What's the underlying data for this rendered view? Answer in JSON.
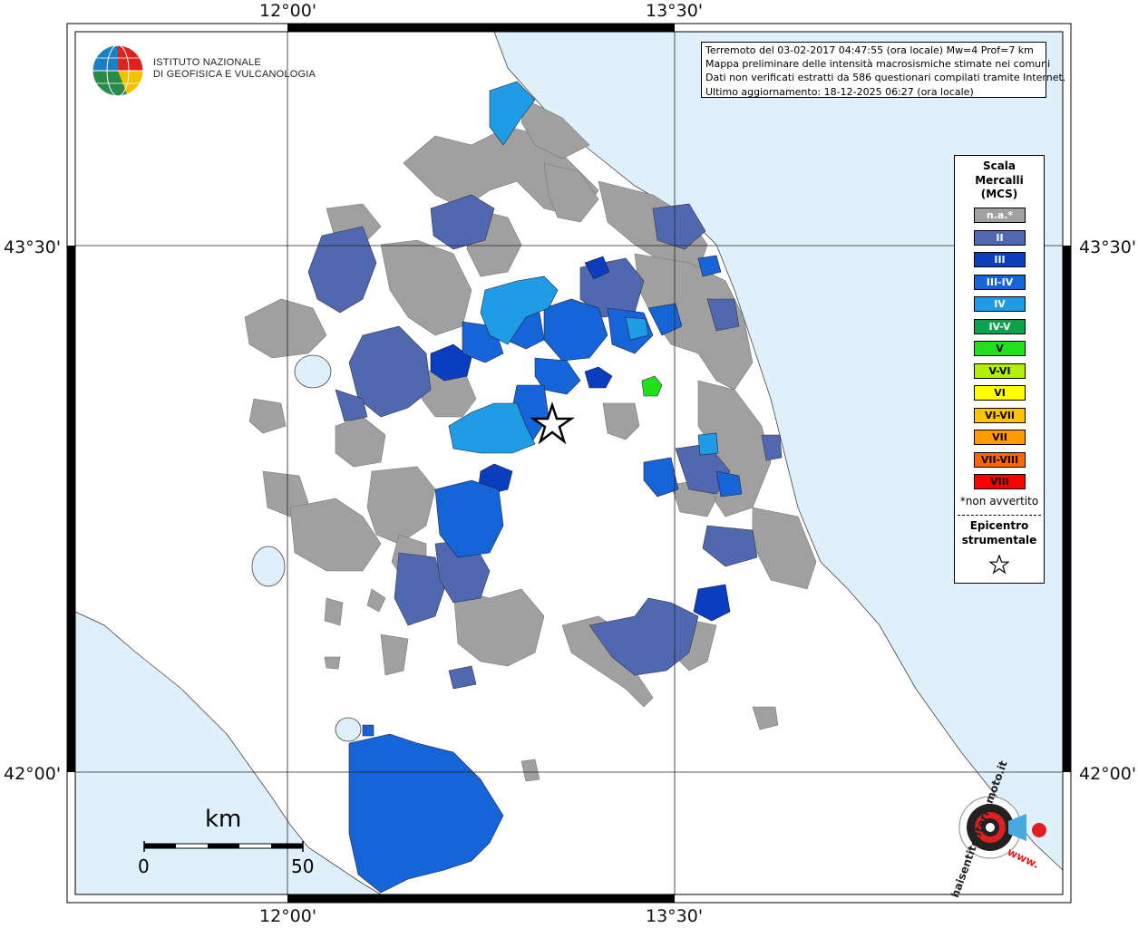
{
  "map": {
    "lon_labels": [
      "12°00'",
      "13°30'"
    ],
    "lat_labels": [
      "43°30'",
      "42°00'"
    ],
    "colors": {
      "sea": "#dff0fb",
      "land": "#ffffff",
      "na": "#a0a0a0",
      "ii": "#5068b0",
      "iii": "#0a3dbf",
      "iii_iv": "#1564d8",
      "iv": "#1e9de6"
    }
  },
  "logo": {
    "line1": "ISTITUTO NAZIONALE",
    "line2": "DI GEOFISICA E VULCANOLOGIA"
  },
  "info": {
    "line1": "Terremoto del 03-02-2017 04:47:55 (ora locale) Mw=4 Prof=7 km",
    "line2": "Mappa preliminare delle intensità macrosismiche stimate nei comuni",
    "line3": "Dati non verificati estratti da 586 questionari compilati tramite Internet.",
    "line4": "Ultimo aggiornamento: 18-12-2025 06:27 (ora locale)"
  },
  "legend": {
    "title1": "Scala",
    "title2": "Mercalli",
    "title3": "(MCS)",
    "items": [
      {
        "label": "n.a.*",
        "color": "#a0a0a0",
        "text": "#ffffff"
      },
      {
        "label": "II",
        "color": "#5068b0",
        "text": "#ffffff"
      },
      {
        "label": "III",
        "color": "#0a3dbf",
        "text": "#ffffff"
      },
      {
        "label": "III-IV",
        "color": "#1564d8",
        "text": "#ffffff"
      },
      {
        "label": "IV",
        "color": "#1e9de6",
        "text": "#ffffff"
      },
      {
        "label": "IV-V",
        "color": "#0aa34b",
        "text": "#ffffff"
      },
      {
        "label": "V",
        "color": "#22e01a",
        "text": "#000000"
      },
      {
        "label": "V-VI",
        "color": "#b0f000",
        "text": "#000000"
      },
      {
        "label": "VI",
        "color": "#ffff00",
        "text": "#000000"
      },
      {
        "label": "VI-VII",
        "color": "#ffc400",
        "text": "#000000"
      },
      {
        "label": "VII",
        "color": "#ff9a00",
        "text": "#000000"
      },
      {
        "label": "VII-VIII",
        "color": "#ff6600",
        "text": "#000000"
      },
      {
        "label": "VIII",
        "color": "#ff0000",
        "text": "#000000"
      }
    ],
    "note": "*non avvertito",
    "epicenter1": "Epicentro",
    "epicenter2": "strumentale"
  },
  "scale_bar": {
    "unit": "km",
    "min": "0",
    "max": "50"
  },
  "hst_logo": {
    "text": "haisentitoilterremoto.it",
    "www": "www."
  }
}
